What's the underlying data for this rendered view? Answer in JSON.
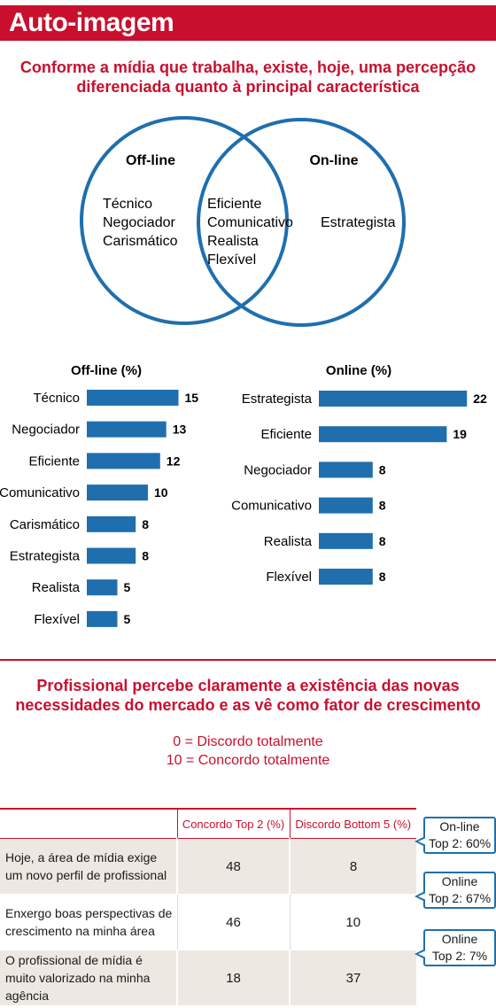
{
  "header": {
    "title": "Auto-imagem"
  },
  "section1": {
    "subtitle_line1": "Conforme a mídia que trabalha, existe, hoje, uma percepção",
    "subtitle_line2": "diferenciada quanto à principal característica"
  },
  "venn": {
    "left_title": "Off-line",
    "right_title": "On-line",
    "left_items": [
      "Técnico",
      "Negociador",
      "Carismático"
    ],
    "center_items": [
      "Eficiente",
      "Comunicativo",
      "Realista",
      "Flexível"
    ],
    "right_items": [
      "Estrategista"
    ]
  },
  "colors": {
    "accent": "#c8102e",
    "bar": "#1f6fae",
    "shade": "#ede9e2"
  },
  "chart_data": [
    {
      "type": "bar",
      "orientation": "horizontal",
      "title": "Off-line (%)",
      "categories": [
        "Técnico",
        "Negociador",
        "Eficiente",
        "Comunicativo",
        "Carismático",
        "Estrategista",
        "Realista",
        "Flexível"
      ],
      "values": [
        15,
        13,
        12,
        10,
        8,
        8,
        5,
        5
      ]
    },
    {
      "type": "bar",
      "orientation": "horizontal",
      "title": "Online (%)",
      "categories": [
        "Estrategista",
        "Eficiente",
        "Negociador",
        "Comunicativo",
        "Realista",
        "Flexível"
      ],
      "values": [
        22,
        19,
        8,
        8,
        8,
        8
      ]
    }
  ],
  "section2": {
    "subtitle_line1": "Profissional percebe claramente a existência das novas",
    "subtitle_line2": "necessidades do mercado e as vê como fator de crescimento",
    "scale_low": "0 = Discordo totalmente",
    "scale_high": "10 = Concordo totalmente"
  },
  "survey": {
    "columns": [
      "",
      "Concordo Top 2 (%)",
      "Discordo Bottom 5 (%)"
    ],
    "rows": [
      {
        "question": "Hoje, a área de mídia exige um novo perfil de profissional",
        "top2": "48",
        "bottom5": "8",
        "callout_line1": "On-line",
        "callout_line2": "Top 2: 60%"
      },
      {
        "question": "Enxergo boas perspectivas de crescimento na minha área",
        "top2": "46",
        "bottom5": "10",
        "callout_line1": "Online",
        "callout_line2": "Top 2: 67%"
      },
      {
        "question": "O profissional de mídia é muito valorizado na minha agência",
        "top2": "18",
        "bottom5": "37",
        "callout_line1": "Online",
        "callout_line2": "Top 2: 7%"
      }
    ]
  }
}
